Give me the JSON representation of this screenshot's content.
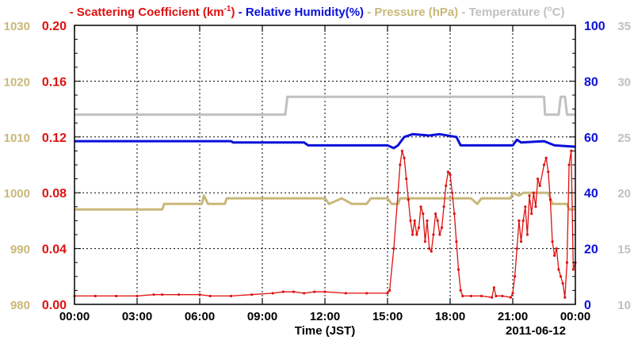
{
  "chart_data": {
    "type": "line",
    "date_label": "2011-06-12",
    "xlabel": "Time (JST)",
    "x_ticks": [
      "00:00",
      "03:00",
      "06:00",
      "09:00",
      "12:00",
      "15:00",
      "18:00",
      "21:00",
      "00:00"
    ],
    "xlim_hours": [
      0,
      24
    ],
    "grid": true,
    "legend_position": "top",
    "axes": {
      "pressure": {
        "ticks": [
          "980",
          "990",
          "1000",
          "1010",
          "1020",
          "1030"
        ],
        "range": [
          980,
          1030
        ],
        "color": "#c8b87a"
      },
      "scattering": {
        "ticks": [
          "0.00",
          "0.04",
          "0.08",
          "0.12",
          "0.16",
          "0.20"
        ],
        "range": [
          0,
          0.2
        ],
        "color": "#e01010"
      },
      "humidity": {
        "ticks": [
          "0",
          "20",
          "40",
          "60",
          "80",
          "100"
        ],
        "range": [
          0,
          100
        ],
        "color": "#0a10d8"
      },
      "temperature": {
        "ticks": [
          "10",
          "15",
          "20",
          "25",
          "30",
          "35"
        ],
        "range": [
          10,
          35
        ],
        "color": "#c0c0c0"
      }
    },
    "legend": [
      {
        "prefix": "- Scattering Coefficient (km",
        "sup": "-1",
        "suffix": ")",
        "color": "#e01010",
        "series": "scattering"
      },
      {
        "prefix": "- Relative Humidity(%)",
        "sup": "",
        "suffix": "",
        "color": "#0a10d8",
        "series": "humidity"
      },
      {
        "prefix": "- Pressure (hPa)",
        "sup": "",
        "suffix": "",
        "color": "#c8b87a",
        "series": "pressure"
      },
      {
        "prefix": "- Temperature (",
        "sup": "o",
        "suffix": "C)",
        "color": "#c0c0c0",
        "series": "temperature"
      }
    ],
    "series": [
      {
        "name": "Temperature",
        "axis": "temperature",
        "color": "#c0c0c0",
        "markers": false,
        "points": [
          [
            0,
            27
          ],
          [
            10.1,
            27
          ],
          [
            10.2,
            28.6
          ],
          [
            22.5,
            28.6
          ],
          [
            22.55,
            27
          ],
          [
            23.2,
            27
          ],
          [
            23.3,
            28.6
          ],
          [
            23.5,
            28.6
          ],
          [
            23.6,
            27
          ],
          [
            24,
            27
          ]
        ]
      },
      {
        "name": "Relative Humidity",
        "axis": "humidity",
        "color": "#0a10d8",
        "markers": false,
        "points": [
          [
            0,
            58.5
          ],
          [
            7.5,
            58.5
          ],
          [
            7.6,
            58
          ],
          [
            11,
            58
          ],
          [
            11.2,
            57
          ],
          [
            15,
            57
          ],
          [
            15.3,
            56
          ],
          [
            15.5,
            57
          ],
          [
            15.8,
            60
          ],
          [
            16.2,
            61
          ],
          [
            17.0,
            60.5
          ],
          [
            17.5,
            61
          ],
          [
            18.3,
            60
          ],
          [
            18.5,
            57
          ],
          [
            21.0,
            57
          ],
          [
            21.2,
            59
          ],
          [
            21.4,
            58
          ],
          [
            22.5,
            58.5
          ],
          [
            23,
            57
          ],
          [
            24,
            56.5
          ]
        ]
      },
      {
        "name": "Pressure",
        "axis": "pressure",
        "color": "#c8b87a",
        "markers": false,
        "points": [
          [
            0,
            997
          ],
          [
            4.2,
            997
          ],
          [
            4.3,
            998
          ],
          [
            6.1,
            998
          ],
          [
            6.2,
            999.5
          ],
          [
            6.4,
            998
          ],
          [
            7.2,
            998
          ],
          [
            7.3,
            999
          ],
          [
            12.0,
            999
          ],
          [
            12.2,
            998
          ],
          [
            12.8,
            999
          ],
          [
            13.3,
            998
          ],
          [
            14.0,
            998
          ],
          [
            14.2,
            999
          ],
          [
            15.0,
            999
          ],
          [
            15.2,
            998
          ],
          [
            15.5,
            998
          ],
          [
            15.6,
            999
          ],
          [
            19.0,
            999
          ],
          [
            19.3,
            998
          ],
          [
            19.5,
            999
          ],
          [
            20.9,
            999
          ],
          [
            21.0,
            1000
          ],
          [
            21.3,
            999.5
          ],
          [
            21.5,
            1000
          ],
          [
            22.7,
            1000
          ],
          [
            22.9,
            998
          ],
          [
            23.6,
            998
          ],
          [
            23.7,
            997
          ],
          [
            24,
            997
          ]
        ]
      },
      {
        "name": "Scattering Coefficient",
        "axis": "scattering",
        "color": "#e01010",
        "markers": true,
        "points": [
          [
            0,
            0.006
          ],
          [
            1,
            0.006
          ],
          [
            2,
            0.006
          ],
          [
            3,
            0.006
          ],
          [
            3.8,
            0.007
          ],
          [
            4.2,
            0.007
          ],
          [
            5,
            0.007
          ],
          [
            6,
            0.007
          ],
          [
            6.5,
            0.006
          ],
          [
            7.5,
            0.006
          ],
          [
            8.5,
            0.007
          ],
          [
            9.5,
            0.008
          ],
          [
            10,
            0.009
          ],
          [
            10.5,
            0.009
          ],
          [
            11,
            0.008
          ],
          [
            11.5,
            0.009
          ],
          [
            12,
            0.009
          ],
          [
            13,
            0.008
          ],
          [
            14,
            0.008
          ],
          [
            15,
            0.008
          ],
          [
            15.1,
            0.01
          ],
          [
            15.3,
            0.04
          ],
          [
            15.5,
            0.08
          ],
          [
            15.6,
            0.1
          ],
          [
            15.7,
            0.11
          ],
          [
            15.8,
            0.105
          ],
          [
            15.9,
            0.09
          ],
          [
            16,
            0.075
          ],
          [
            16.1,
            0.06
          ],
          [
            16.2,
            0.05
          ],
          [
            16.3,
            0.06
          ],
          [
            16.4,
            0.05
          ],
          [
            16.5,
            0.055
          ],
          [
            16.6,
            0.07
          ],
          [
            16.7,
            0.065
          ],
          [
            16.8,
            0.045
          ],
          [
            16.9,
            0.06
          ],
          [
            17,
            0.04
          ],
          [
            17.1,
            0.038
          ],
          [
            17.2,
            0.05
          ],
          [
            17.3,
            0.065
          ],
          [
            17.4,
            0.06
          ],
          [
            17.5,
            0.05
          ],
          [
            17.6,
            0.055
          ],
          [
            17.7,
            0.07
          ],
          [
            17.8,
            0.085
          ],
          [
            17.9,
            0.095
          ],
          [
            18,
            0.093
          ],
          [
            18.1,
            0.08
          ],
          [
            18.2,
            0.065
          ],
          [
            18.3,
            0.045
          ],
          [
            18.4,
            0.025
          ],
          [
            18.5,
            0.01
          ],
          [
            18.6,
            0.006
          ],
          [
            19,
            0.006
          ],
          [
            19.5,
            0.006
          ],
          [
            20.0,
            0.005
          ],
          [
            20.1,
            0.012
          ],
          [
            20.2,
            0.006
          ],
          [
            20.5,
            0.006
          ],
          [
            20.9,
            0.005
          ],
          [
            21.0,
            0.008
          ],
          [
            21.1,
            0.02
          ],
          [
            21.2,
            0.04
          ],
          [
            21.3,
            0.06
          ],
          [
            21.4,
            0.045
          ],
          [
            21.5,
            0.06
          ],
          [
            21.6,
            0.07
          ],
          [
            21.7,
            0.05
          ],
          [
            21.8,
            0.078
          ],
          [
            21.9,
            0.065
          ],
          [
            22,
            0.08
          ],
          [
            22.1,
            0.07
          ],
          [
            22.2,
            0.09
          ],
          [
            22.3,
            0.085
          ],
          [
            22.5,
            0.1
          ],
          [
            22.6,
            0.105
          ],
          [
            22.7,
            0.095
          ],
          [
            22.8,
            0.075
          ],
          [
            22.9,
            0.045
          ],
          [
            23,
            0.035
          ],
          [
            23.1,
            0.04
          ],
          [
            23.2,
            0.025
          ],
          [
            23.3,
            0.02
          ],
          [
            23.4,
            0.015
          ],
          [
            23.5,
            0.005
          ],
          [
            23.6,
            0.03
          ],
          [
            23.7,
            0.1
          ],
          [
            23.8,
            0.11
          ],
          [
            23.9,
            0.025
          ],
          [
            24,
            0.03
          ]
        ]
      }
    ]
  }
}
